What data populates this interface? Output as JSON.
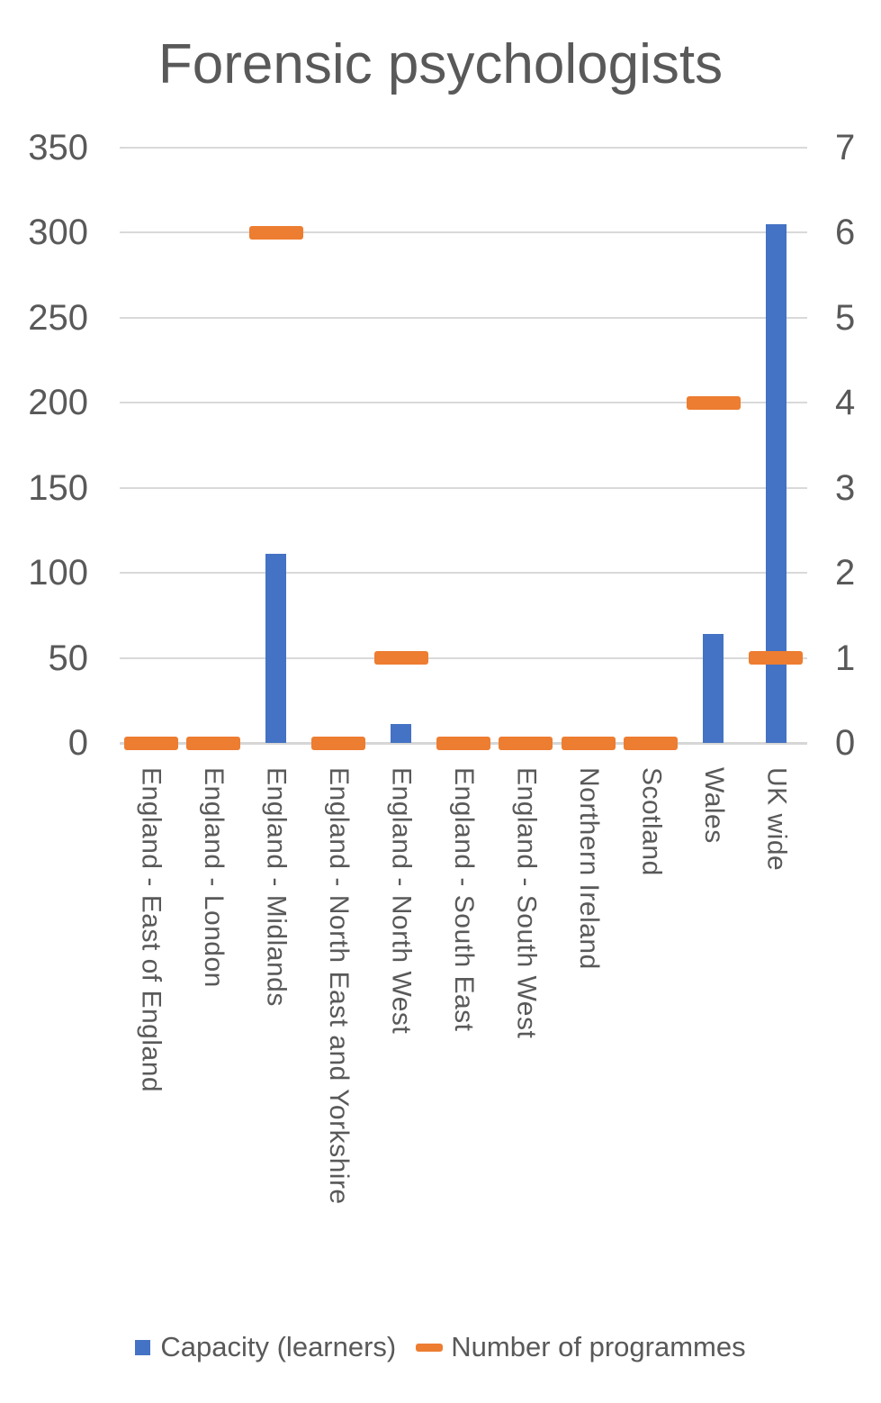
{
  "title": "Forensic psychologists",
  "legend": {
    "capacity_label": "Capacity (learners)",
    "programmes_label": "Number of programmes"
  },
  "chart_data": {
    "type": "bar",
    "title": "Forensic psychologists",
    "categories": [
      "England - East of England",
      "England - London",
      "England - Midlands",
      "England - North East and Yorkshire",
      "England - North West",
      "England - South East",
      "England - South West",
      "Northern Ireland",
      "Scotland",
      "Wales",
      "UK wide"
    ],
    "series": [
      {
        "name": "Capacity (learners)",
        "type": "bar",
        "axis": "left",
        "color": "#4472C4",
        "values": [
          0,
          0,
          111,
          0,
          11,
          0,
          0,
          0,
          0,
          64,
          305
        ]
      },
      {
        "name": "Number of programmes",
        "type": "dash",
        "axis": "right",
        "color": "#ED7D31",
        "values": [
          0,
          0,
          6,
          0,
          1,
          0,
          0,
          0,
          0,
          4,
          1
        ]
      }
    ],
    "left_axis": {
      "min": 0,
      "max": 350,
      "step": 50,
      "ticks": [
        350,
        300,
        250,
        200,
        150,
        100,
        50,
        0
      ]
    },
    "right_axis": {
      "min": 0,
      "max": 7,
      "step": 1,
      "ticks": [
        7,
        6,
        5,
        4,
        3,
        2,
        1,
        0
      ]
    },
    "grid": true,
    "legend_position": "bottom",
    "colors": {
      "capacity": "#4472C4",
      "programmes": "#ED7D31",
      "gridline": "#D9D9D9",
      "text": "#595959"
    }
  }
}
